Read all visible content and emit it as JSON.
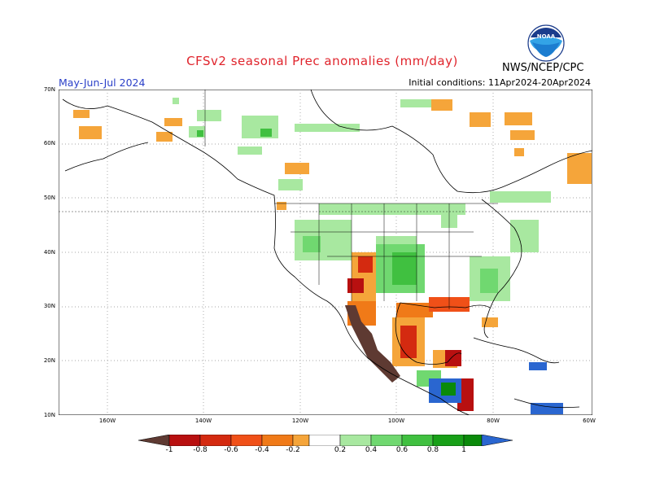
{
  "header": {
    "title": "CFSv2 seasonal Prec anomalies (mm/day)",
    "agency": "NWS/NCEP/CPC",
    "season": "May-Jun-Jul 2024",
    "initial_conditions": "Initial conditions: 11Apr2024-20Apr2024",
    "logo_text": "NOAA"
  },
  "map": {
    "lat_labels": [
      "70N",
      "60N",
      "50N",
      "40N",
      "30N",
      "20N",
      "10N"
    ],
    "lon_labels": [
      "160W",
      "140W",
      "120W",
      "100W",
      "80W",
      "60W"
    ],
    "colors": {
      "neg_extreme": "#5e3a32",
      "neg_1": "#b81010",
      "neg_08": "#d42a10",
      "neg_06": "#f05018",
      "neg_04": "#f07a18",
      "neg_02": "#f5a53a",
      "pos_02": "#a8e8a0",
      "pos_04": "#70d870",
      "pos_06": "#40c040",
      "pos_08": "#18a018",
      "pos_1": "#0a8a0a",
      "pos_extreme": "#2a66d0",
      "coast": "#000000",
      "grid": "#8a8a8a"
    }
  },
  "colorbar": {
    "labels": [
      "-1",
      "-0.8",
      "-0.6",
      "-0.4",
      "-0.2",
      "0.2",
      "0.4",
      "0.6",
      "0.8",
      "1"
    ]
  }
}
